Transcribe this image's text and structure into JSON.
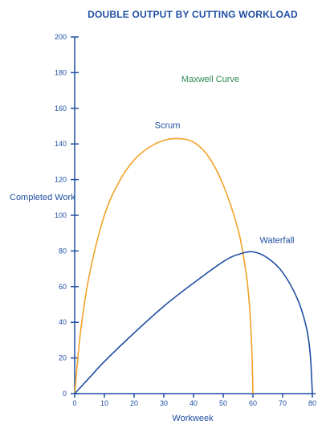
{
  "chart_data": {
    "type": "line",
    "title": "DOUBLE OUTPUT BY CUTTING WORKLOAD",
    "xlabel": "Workweek",
    "ylabel": "Completed Work",
    "xlim": [
      0,
      80
    ],
    "ylim": [
      0,
      200
    ],
    "xticks": [
      0,
      10,
      20,
      30,
      40,
      50,
      60,
      70,
      80
    ],
    "yticks": [
      0,
      20,
      40,
      60,
      80,
      100,
      120,
      140,
      160,
      180,
      200
    ],
    "grid": false,
    "annotation": "Maxwell Curve",
    "series": [
      {
        "name": "Scrum",
        "color": "#F0A328",
        "x": [
          0,
          2,
          5,
          10,
          15,
          20,
          25,
          30,
          35,
          40,
          45,
          50,
          55,
          57.5,
          58.5,
          59.2,
          59.7,
          60
        ],
        "y": [
          0,
          35,
          67,
          100,
          119,
          131,
          138,
          142,
          143,
          141,
          133,
          117,
          92,
          70,
          56,
          40,
          22,
          0
        ]
      },
      {
        "name": "Waterfall",
        "color": "#1F4FA3",
        "x": [
          0,
          5,
          10,
          20,
          30,
          40,
          50,
          55,
          60,
          65,
          70,
          75,
          78,
          79.3,
          80
        ],
        "y": [
          0,
          9,
          18,
          34,
          49,
          62,
          74,
          78,
          79.5,
          76,
          68,
          53,
          37,
          22,
          0
        ]
      }
    ]
  },
  "colors": {
    "axis": "#1F4FA3",
    "title": "#1F4FA3",
    "text": "#1F4FA3",
    "annotation": "#2E8B57"
  }
}
